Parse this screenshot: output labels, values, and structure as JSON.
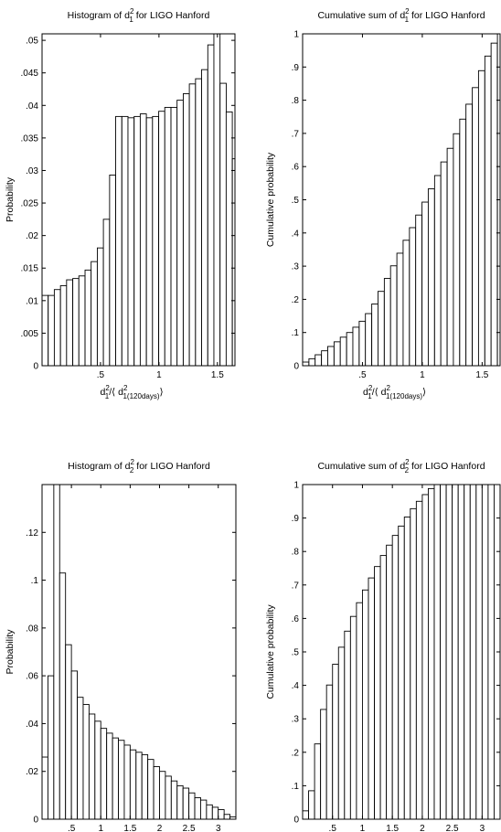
{
  "chart_data": [
    {
      "type": "bar",
      "title": "Histogram of d₁² for LIGO Hanford",
      "xlabel": "d₁²/⟨ d₁(₁₂₀days)² ⟩",
      "ylabel": "Probability",
      "xlim": [
        0,
        1.65
      ],
      "ylim": [
        0,
        0.051
      ],
      "x_ticks": [
        0.5,
        1,
        1.5
      ],
      "y_ticks": [
        0,
        0.005,
        0.01,
        0.015,
        0.02,
        0.025,
        0.03,
        0.035,
        0.04,
        0.045,
        0.05
      ],
      "bin_width": 0.0525,
      "x": [
        0.026,
        0.079,
        0.131,
        0.184,
        0.236,
        0.289,
        0.341,
        0.394,
        0.446,
        0.499,
        0.551,
        0.604,
        0.656,
        0.709,
        0.761,
        0.814,
        0.866,
        0.919,
        0.971,
        1.024,
        1.076,
        1.129,
        1.181,
        1.234,
        1.286,
        1.339,
        1.391,
        1.444,
        1.496,
        1.549,
        1.601,
        1.654
      ],
      "values": [
        0.0108,
        0.0108,
        0.0117,
        0.0123,
        0.0132,
        0.0134,
        0.0138,
        0.0147,
        0.016,
        0.0181,
        0.0225,
        0.0293,
        0.0383,
        0.0383,
        0.0381,
        0.0383,
        0.0387,
        0.0381,
        0.0383,
        0.0391,
        0.0397,
        0.0397,
        0.0408,
        0.0418,
        0.0433,
        0.0441,
        0.0455,
        0.0493,
        0.051,
        0.0434,
        0.039,
        0.0318
      ]
    },
    {
      "type": "bar",
      "title": "Cumulative sum of d₁² for LIGO Hanford",
      "xlabel": "d₁²/⟨ d₁(₁₂₀days)² ⟩",
      "ylabel": "Cumulative probability",
      "xlim": [
        0,
        1.65
      ],
      "ylim": [
        0,
        1
      ],
      "x_ticks": [
        0.5,
        1,
        1.5
      ],
      "y_ticks": [
        0,
        0.1,
        0.2,
        0.3,
        0.4,
        0.5,
        0.6,
        0.7,
        0.8,
        0.9,
        1
      ],
      "bin_width": 0.0525,
      "x": [
        0.026,
        0.079,
        0.131,
        0.184,
        0.236,
        0.289,
        0.341,
        0.394,
        0.446,
        0.499,
        0.551,
        0.604,
        0.656,
        0.709,
        0.761,
        0.814,
        0.866,
        0.919,
        0.971,
        1.024,
        1.076,
        1.129,
        1.181,
        1.234,
        1.286,
        1.339,
        1.391,
        1.444,
        1.496,
        1.549,
        1.601,
        1.654
      ],
      "values": [
        0.011,
        0.021,
        0.033,
        0.045,
        0.058,
        0.072,
        0.086,
        0.1,
        0.116,
        0.134,
        0.157,
        0.186,
        0.224,
        0.263,
        0.301,
        0.339,
        0.378,
        0.416,
        0.454,
        0.493,
        0.533,
        0.573,
        0.614,
        0.655,
        0.699,
        0.743,
        0.788,
        0.838,
        0.889,
        0.933,
        0.972,
        1.004
      ]
    },
    {
      "type": "bar",
      "title": "Histogram of d₂² for LIGO Hanford",
      "xlabel": "",
      "ylabel": "Probability",
      "xlim": [
        0,
        3.3
      ],
      "ylim": [
        0,
        0.14
      ],
      "x_ticks": [
        0.5,
        1,
        1.5,
        2,
        2.5,
        3
      ],
      "y_ticks": [
        0,
        0.02,
        0.04,
        0.06,
        0.08,
        0.1,
        0.12
      ],
      "bin_width": 0.1,
      "x": [
        0.05,
        0.15,
        0.25,
        0.35,
        0.45,
        0.55,
        0.65,
        0.75,
        0.85,
        0.95,
        1.05,
        1.15,
        1.25,
        1.35,
        1.45,
        1.55,
        1.65,
        1.75,
        1.85,
        1.95,
        2.05,
        2.15,
        2.25,
        2.35,
        2.45,
        2.55,
        2.65,
        2.75,
        2.85,
        2.95,
        3.05,
        3.15,
        3.25
      ],
      "values": [
        0.026,
        0.06,
        0.14,
        0.103,
        0.073,
        0.062,
        0.051,
        0.048,
        0.044,
        0.041,
        0.038,
        0.036,
        0.034,
        0.033,
        0.031,
        0.029,
        0.028,
        0.027,
        0.025,
        0.022,
        0.02,
        0.018,
        0.016,
        0.014,
        0.013,
        0.011,
        0.009,
        0.008,
        0.006,
        0.005,
        0.004,
        0.002,
        0.001
      ]
    },
    {
      "type": "bar",
      "title": "Cumulative sum of d₂² for LIGO Hanford",
      "xlabel": "",
      "ylabel": "Cumulative probability",
      "xlim": [
        0,
        3.3
      ],
      "ylim": [
        0,
        1
      ],
      "x_ticks": [
        0.5,
        1,
        1.5,
        2,
        2.5,
        3
      ],
      "y_ticks": [
        0,
        0.1,
        0.2,
        0.3,
        0.4,
        0.5,
        0.6,
        0.7,
        0.8,
        0.9,
        1
      ],
      "bin_width": 0.1,
      "x": [
        0.05,
        0.15,
        0.25,
        0.35,
        0.45,
        0.55,
        0.65,
        0.75,
        0.85,
        0.95,
        1.05,
        1.15,
        1.25,
        1.35,
        1.45,
        1.55,
        1.65,
        1.75,
        1.85,
        1.95,
        2.05,
        2.15,
        2.25,
        2.35,
        2.45,
        2.55,
        2.65,
        2.75,
        2.85,
        2.95,
        3.05,
        3.15,
        3.25
      ],
      "values": [
        0.025,
        0.085,
        0.225,
        0.328,
        0.401,
        0.463,
        0.514,
        0.562,
        0.606,
        0.647,
        0.685,
        0.721,
        0.755,
        0.788,
        0.819,
        0.848,
        0.876,
        0.903,
        0.928,
        0.95,
        0.97,
        0.988,
        1.004,
        1.018,
        1.031,
        1.042,
        1.051,
        1.059,
        1.065,
        1.07,
        1.074,
        1.076,
        1.077
      ]
    }
  ]
}
